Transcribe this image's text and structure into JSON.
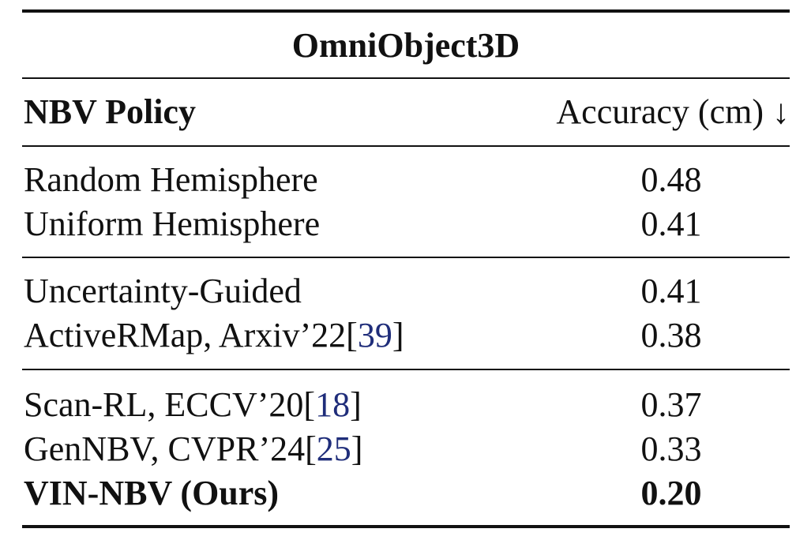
{
  "title": "OmniObject3D",
  "header": {
    "policy": "NBV Policy",
    "accuracy": "Accuracy (cm) ↓"
  },
  "groups": [
    {
      "rows": [
        {
          "policy": "Random Hemisphere",
          "cite": "",
          "suffix": "",
          "accuracy": "0.48",
          "bold": false
        },
        {
          "policy": "Uniform Hemisphere",
          "cite": "",
          "suffix": "",
          "accuracy": "0.41",
          "bold": false
        }
      ]
    },
    {
      "rows": [
        {
          "policy": "Uncertainty-Guided",
          "cite": "",
          "suffix": "",
          "accuracy": "0.41",
          "bold": false
        },
        {
          "policy": "ActiveRMap, Arxiv’22[",
          "cite": "39",
          "suffix": "]",
          "accuracy": "0.38",
          "bold": false
        }
      ]
    },
    {
      "rows": [
        {
          "policy": "Scan-RL, ECCV’20[",
          "cite": "18",
          "suffix": "]",
          "accuracy": "0.37",
          "bold": false
        },
        {
          "policy": "GenNBV, CVPR’24[",
          "cite": "25",
          "suffix": "]",
          "accuracy": "0.33",
          "bold": false
        },
        {
          "policy": "VIN-NBV (Ours)",
          "cite": "",
          "suffix": "",
          "accuracy": "0.20",
          "bold": true
        }
      ]
    }
  ],
  "colors": {
    "text": "#111111",
    "citation": "#1f2d7a"
  }
}
